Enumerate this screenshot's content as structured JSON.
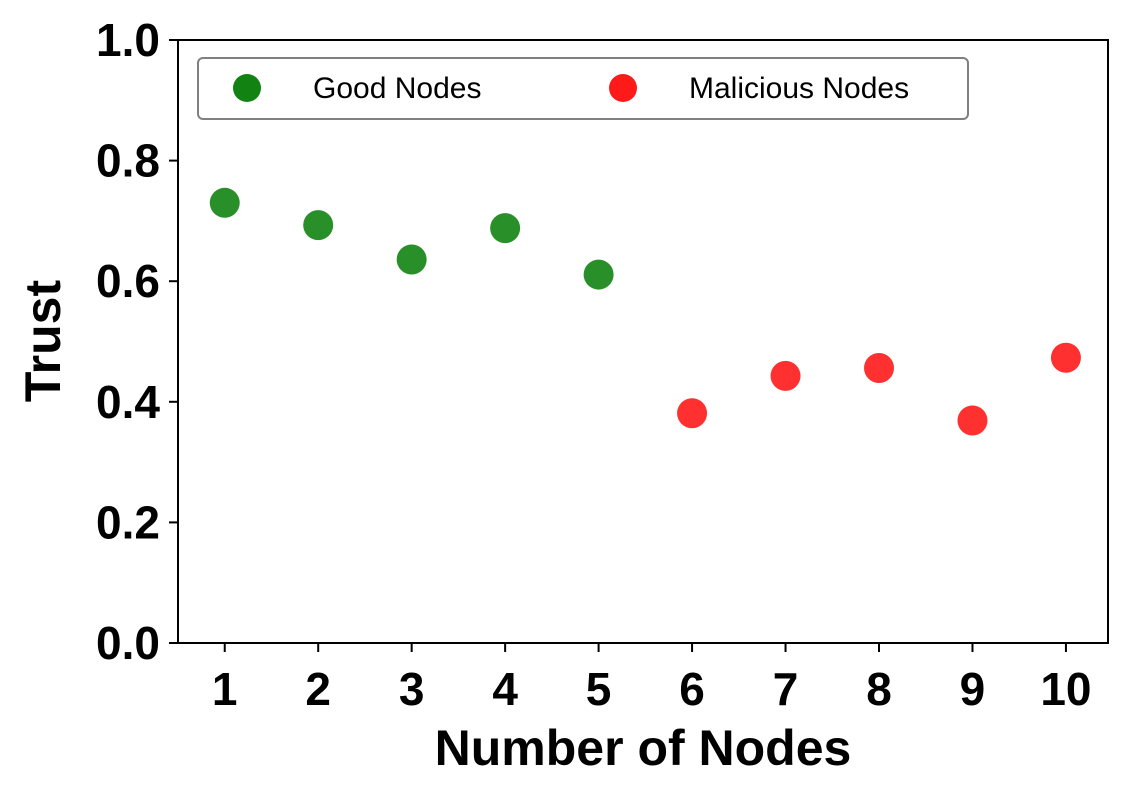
{
  "chart_data": {
    "type": "scatter",
    "xlabel": "Number of Nodes",
    "ylabel": "Trust",
    "xlim": [
      0.5,
      10.45
    ],
    "ylim": [
      0.0,
      1.0
    ],
    "x_ticks": [
      "1",
      "2",
      "3",
      "4",
      "5",
      "6",
      "7",
      "8",
      "9",
      "10"
    ],
    "y_ticks": [
      "0.0",
      "0.2",
      "0.4",
      "0.6",
      "0.8",
      "1.0"
    ],
    "grid": false,
    "legend_position": "top-left",
    "series": [
      {
        "name": "Good Nodes",
        "color": "#128312",
        "points": [
          {
            "x": 1,
            "y": 0.73
          },
          {
            "x": 2,
            "y": 0.693
          },
          {
            "x": 3,
            "y": 0.636
          },
          {
            "x": 4,
            "y": 0.688
          },
          {
            "x": 5,
            "y": 0.611
          }
        ]
      },
      {
        "name": "Malicious Nodes",
        "color": "#ff1a1a",
        "points": [
          {
            "x": 6,
            "y": 0.381
          },
          {
            "x": 7,
            "y": 0.443
          },
          {
            "x": 8,
            "y": 0.456
          },
          {
            "x": 9,
            "y": 0.369
          },
          {
            "x": 10,
            "y": 0.473
          }
        ]
      }
    ]
  }
}
